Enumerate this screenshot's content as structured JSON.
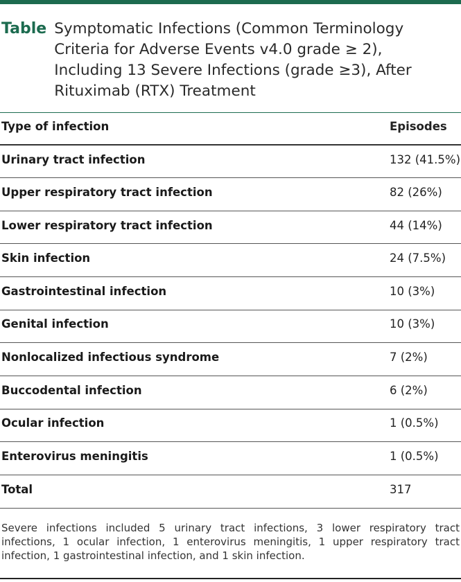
{
  "caption": {
    "label": "Table",
    "title": "Symptomatic Infections (Common Terminology Criteria for Adverse Events v4.0 grade ≥ 2), Including 13 Severe Infections (grade ≥3), After Rituximab (RTX) Treatment"
  },
  "table": {
    "headers": [
      "Type of infection",
      "Episodes"
    ],
    "rows": [
      {
        "type": "Urinary tract infection",
        "episodes": "132 (41.5%)"
      },
      {
        "type": "Upper respiratory tract infection",
        "episodes": "82 (26%)"
      },
      {
        "type": "Lower respiratory tract infection",
        "episodes": "44 (14%)"
      },
      {
        "type": "Skin infection",
        "episodes": "24 (7.5%)"
      },
      {
        "type": "Gastrointestinal infection",
        "episodes": "10 (3%)"
      },
      {
        "type": "Genital infection",
        "episodes": "10 (3%)"
      },
      {
        "type": "Nonlocalized infectious syndrome",
        "episodes": "7 (2%)"
      },
      {
        "type": "Buccodental infection",
        "episodes": "6 (2%)"
      },
      {
        "type": "Ocular infection",
        "episodes": "1 (0.5%)"
      },
      {
        "type": "Enterovirus meningitis",
        "episodes": "1 (0.5%)"
      },
      {
        "type": "Total",
        "episodes": "317"
      }
    ]
  },
  "footnote": "Severe infections included 5 urinary tract infections, 3 lower respiratory tract infections, 1 ocular infection, 1 enterovirus meningitis, 1 upper respiratory tract infection, 1 gastrointestinal infection, and 1 skin infection.",
  "colors": {
    "accent": "#1c6b4f"
  }
}
